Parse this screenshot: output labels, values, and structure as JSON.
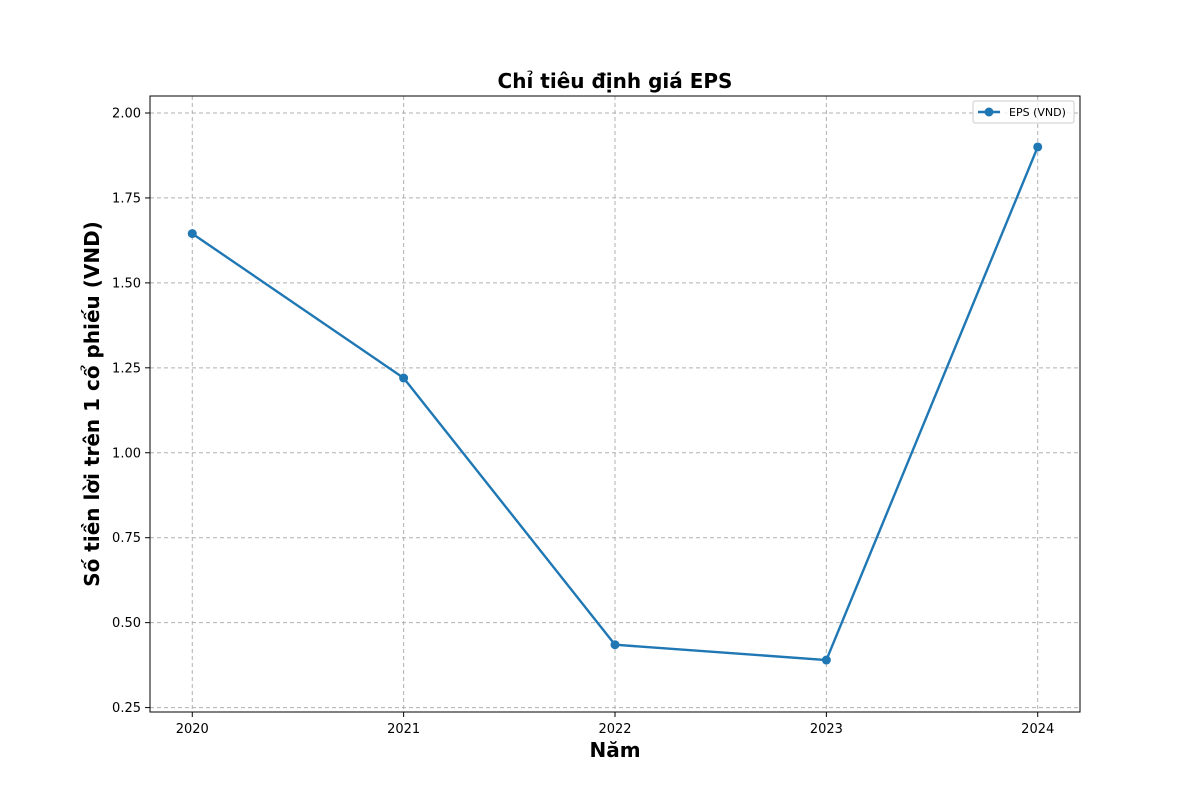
{
  "chart_data": {
    "type": "line",
    "title": "Chỉ tiêu định giá EPS",
    "xlabel": "Năm",
    "ylabel": "Số tiền lời trên 1 cổ phiếu (VND)",
    "x": [
      "2020",
      "2021",
      "2022",
      "2023",
      "2024"
    ],
    "series": [
      {
        "name": "EPS (VND)",
        "values": [
          1.645,
          1.22,
          0.435,
          0.39,
          1.9
        ],
        "color": "#1f77b4"
      }
    ],
    "yticks": [
      "0.25",
      "0.50",
      "0.75",
      "1.00",
      "1.25",
      "1.50",
      "1.75",
      "2.00"
    ],
    "ylim": [
      0.237,
      2.05
    ],
    "grid": true,
    "legend_position": "top-right"
  }
}
